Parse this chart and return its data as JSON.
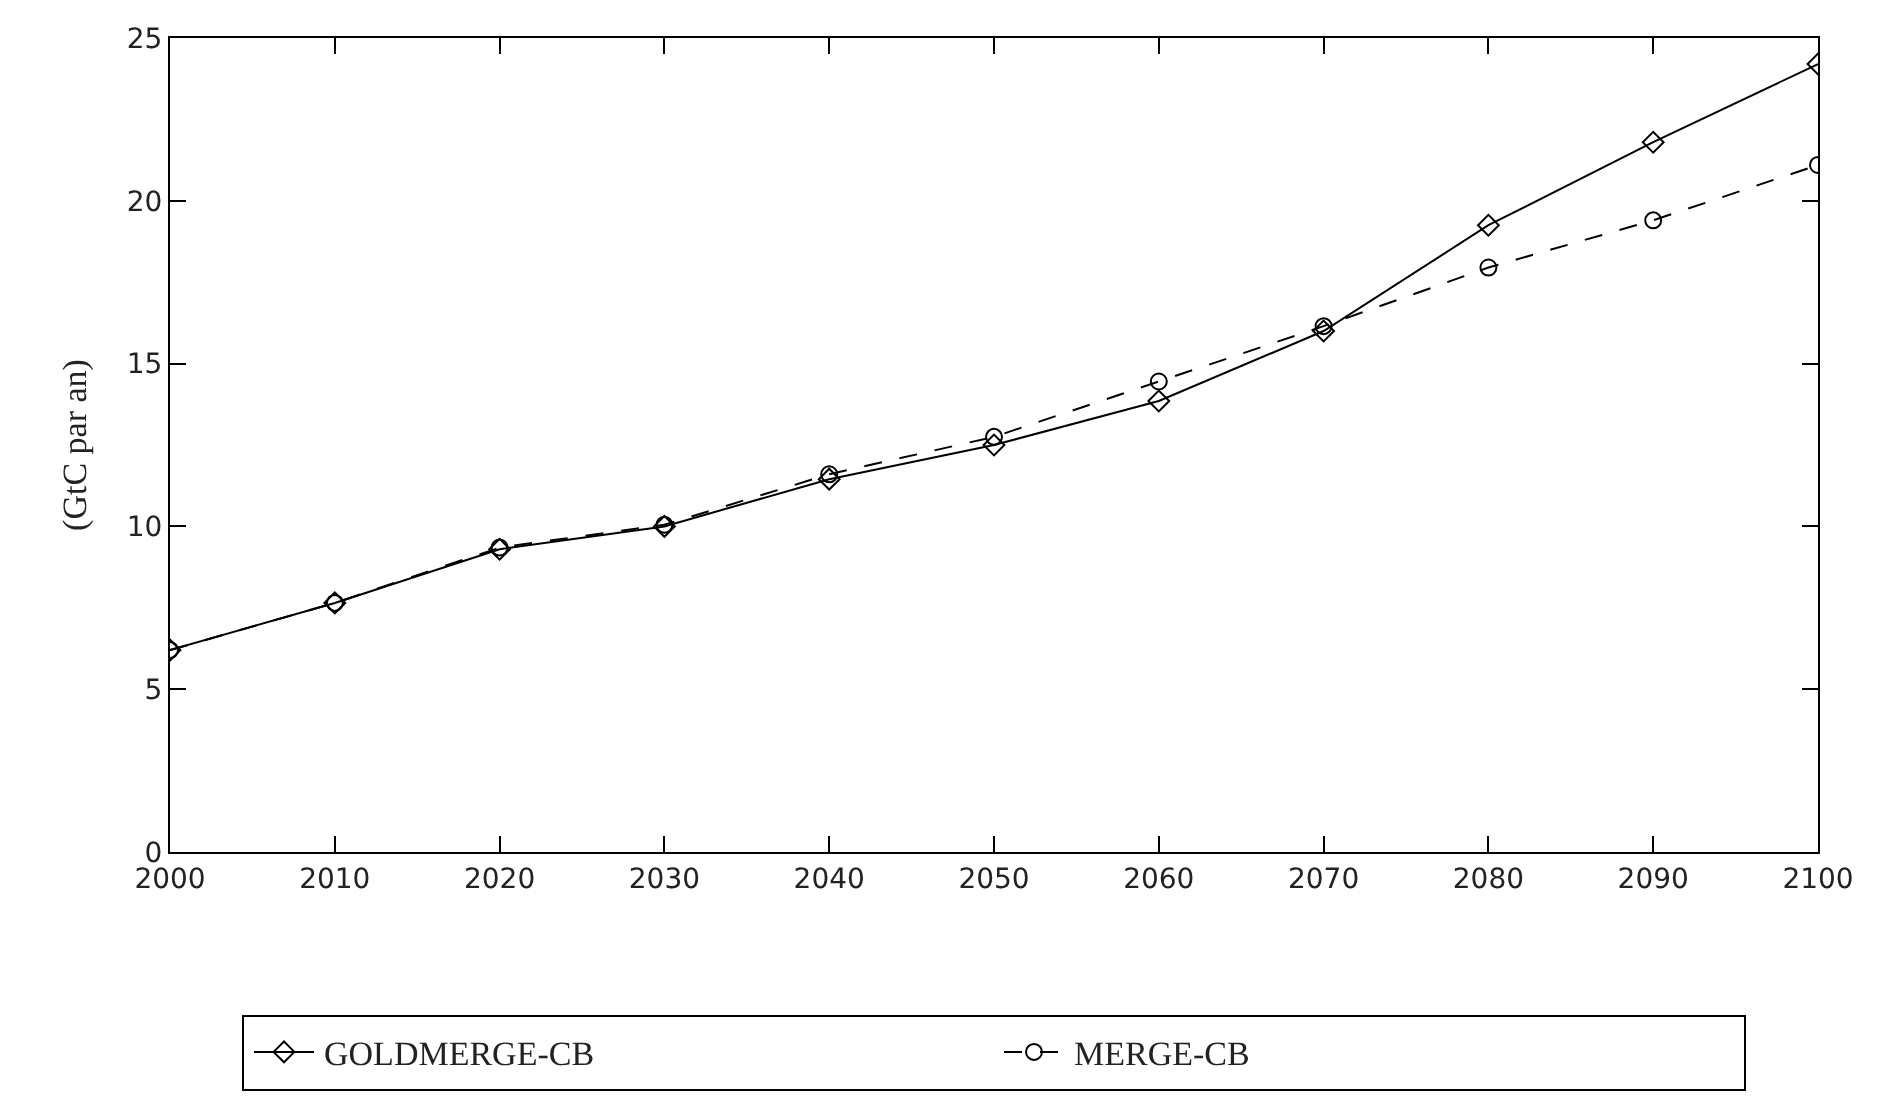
{
  "chart_data": {
    "type": "line",
    "ylabel": "(GtC par an)",
    "x": [
      2000,
      2010,
      2020,
      2030,
      2040,
      2050,
      2060,
      2070,
      2080,
      2090,
      2100
    ],
    "xlim": [
      2000,
      2100
    ],
    "xticks": [
      2000,
      2010,
      2020,
      2030,
      2040,
      2050,
      2060,
      2070,
      2080,
      2090,
      2100
    ],
    "ylim": [
      0,
      25
    ],
    "yticks": [
      0,
      5,
      10,
      15,
      20,
      25
    ],
    "legend": "bottom",
    "series": [
      {
        "name": "GOLDMERGE-CB",
        "color": "#000000",
        "marker": "diamond",
        "line_style": "solid",
        "values": [
          6.2,
          7.65,
          9.3,
          10.0,
          11.45,
          12.5,
          13.85,
          16.0,
          19.25,
          21.8,
          24.2
        ]
      },
      {
        "name": "MERGE-CB",
        "color": "#000000",
        "marker": "circle",
        "line_style": "dashed",
        "values": [
          6.2,
          7.65,
          9.35,
          10.05,
          11.6,
          12.75,
          14.45,
          16.15,
          17.95,
          19.4,
          21.1
        ]
      }
    ]
  }
}
